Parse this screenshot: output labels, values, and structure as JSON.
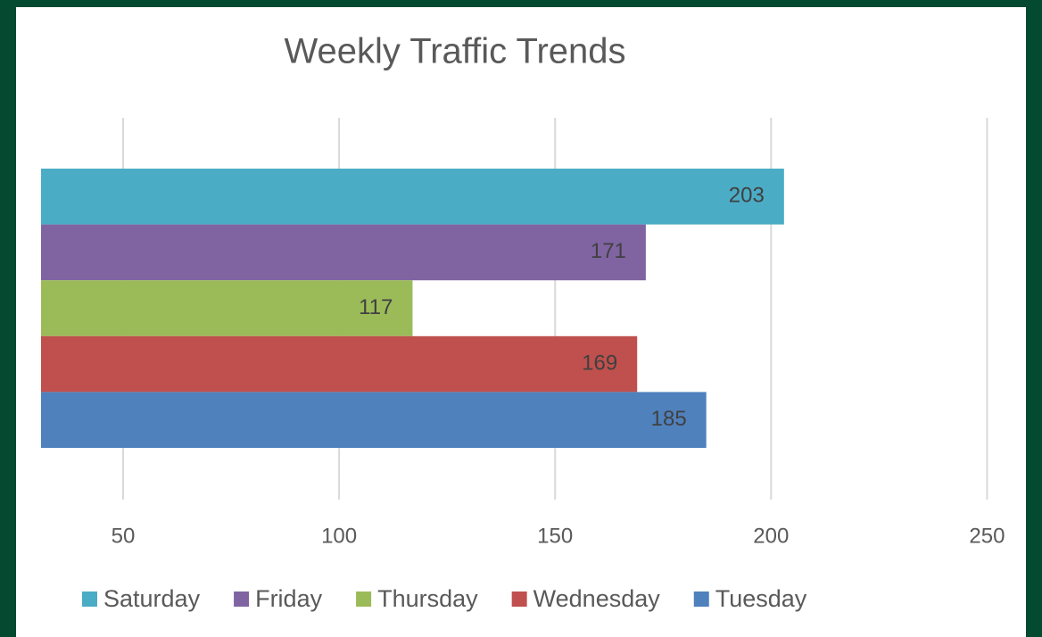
{
  "chart_data": {
    "type": "bar",
    "orientation": "horizontal",
    "title": "Weekly Traffic Trends",
    "series": [
      {
        "name": "Saturday",
        "color": "#4bacc6",
        "values": [
          203
        ]
      },
      {
        "name": "Friday",
        "color": "#8064a2",
        "values": [
          171
        ]
      },
      {
        "name": "Thursday",
        "color": "#9bbb59",
        "values": [
          117
        ]
      },
      {
        "name": "Wednesday",
        "color": "#c0504d",
        "values": [
          169
        ]
      },
      {
        "name": "Tuesday",
        "color": "#4f81bd",
        "values": [
          185
        ]
      }
    ],
    "xlim": [
      31,
      259
    ],
    "xticks": [
      50,
      100,
      150,
      200,
      250
    ],
    "grid": true,
    "legend": "bottom"
  }
}
